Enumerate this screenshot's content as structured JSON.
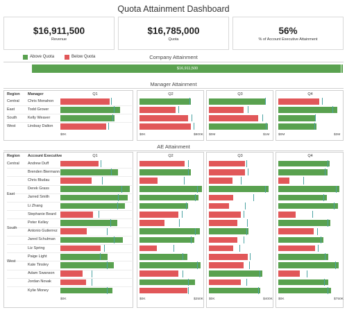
{
  "title": "Quota Attainment Dashboard",
  "kpis": [
    {
      "value": "$16,911,500",
      "label": "Revenue"
    },
    {
      "value": "$16,785,000",
      "label": "Quota"
    },
    {
      "value": "56%",
      "label": "% of Account Executive Attainment"
    }
  ],
  "legend": {
    "above": "Above Quota",
    "below": "Below Quota"
  },
  "colors": {
    "above": "#59a14f",
    "below": "#e15759",
    "target": "#4aa3a3"
  },
  "sections": {
    "company": "Company Attainment",
    "manager": "Manager Attainment",
    "ae": "AE Attainment"
  },
  "col_headers": {
    "region": "Region",
    "manager": "Manager",
    "ae": "Account Executive"
  },
  "quarters": [
    "Q1",
    "Q2",
    "Q3",
    "Q4"
  ],
  "chart_data": [
    {
      "type": "bar",
      "title": "Company Attainment",
      "values": [
        16911500
      ],
      "targets": [
        16785000
      ],
      "label": "$16,911,500",
      "status": [
        "above"
      ]
    },
    {
      "type": "bar",
      "title": "Manager Attainment",
      "regions": [
        "Central",
        "East",
        "South",
        "West"
      ],
      "categories": [
        "Chris Monahon",
        "Todd Grover",
        "Kelly Weaver",
        "Lindsay Dalton"
      ],
      "quarters": [
        {
          "name": "Q1",
          "xlim": [
            0,
            1400000
          ],
          "ticks": [
            "$0K",
            "",
            "",
            ""
          ],
          "values": [
            1000000,
            1200000,
            1090000,
            920000
          ],
          "targets": [
            1020000,
            1080000,
            1050000,
            960000
          ],
          "status": [
            "below",
            "above",
            "above",
            "below"
          ]
        },
        {
          "name": "Q2",
          "xlim": [
            0,
            900000
          ],
          "ticks": [
            "$0K",
            "$800K"
          ],
          "values": [
            740000,
            520000,
            700000,
            740000
          ],
          "targets": [
            720000,
            560000,
            745000,
            780000
          ],
          "status": [
            "above",
            "below",
            "below",
            "below"
          ]
        },
        {
          "name": "Q3",
          "xlim": [
            0,
            1150000
          ],
          "ticks": [
            "$0M",
            "$1M"
          ],
          "values": [
            1040000,
            640000,
            910000,
            1080000
          ],
          "targets": [
            1030000,
            710000,
            990000,
            1050000
          ],
          "status": [
            "above",
            "below",
            "below",
            "above"
          ]
        },
        {
          "name": "Q4",
          "xlim": [
            0,
            3300000
          ],
          "ticks": [
            "$0M",
            "$3M"
          ],
          "values": [
            2100000,
            3050000,
            1950000,
            1990000
          ],
          "targets": [
            2250000,
            2800000,
            1900000,
            1880000
          ],
          "status": [
            "below",
            "above",
            "above",
            "above"
          ]
        }
      ]
    },
    {
      "type": "bar",
      "title": "AE Attainment",
      "region_groups": [
        {
          "region": "Central",
          "start": 0
        },
        {
          "region": "East",
          "start": 4
        },
        {
          "region": "South",
          "start": 8
        },
        {
          "region": "West",
          "start": 12
        }
      ],
      "categories": [
        "Andrew Duff",
        "Brenden Biermann",
        "Chris Bludau",
        "Derek Grass",
        "Jarred Smith",
        "Li Zhang",
        "Stephanie Beard",
        "Peter Kelley",
        "Antonio Gutierrez",
        "Jared Schulman",
        "Liz Spring",
        "Paige Light",
        "Kate Tinsley",
        "Adam Swanson",
        "Jordan Novak",
        "Kylie Money"
      ],
      "quarters": [
        {
          "name": "Q1",
          "xlim": [
            0,
            300000
          ],
          "ticks": [
            "$0K",
            "",
            ""
          ],
          "values": [
            165000,
            250000,
            135000,
            300000,
            290000,
            280000,
            140000,
            245000,
            115000,
            270000,
            175000,
            205000,
            230000,
            95000,
            110000,
            225000
          ],
          "targets": [
            175000,
            220000,
            180000,
            265000,
            250000,
            245000,
            165000,
            215000,
            200000,
            230000,
            190000,
            170000,
            200000,
            135000,
            135000,
            200000
          ],
          "status": [
            "below",
            "above",
            "below",
            "above",
            "above",
            "above",
            "below",
            "above",
            "below",
            "above",
            "below",
            "above",
            "above",
            "below",
            "below",
            "above"
          ]
        },
        {
          "name": "Q2",
          "xlim": [
            0,
            275000
          ],
          "ticks": [
            "$0K",
            "$250K"
          ],
          "values": [
            200000,
            225000,
            80000,
            275000,
            260000,
            215000,
            170000,
            110000,
            265000,
            240000,
            75000,
            210000,
            270000,
            170000,
            245000,
            210000
          ],
          "targets": [
            215000,
            215000,
            195000,
            255000,
            245000,
            205000,
            185000,
            175000,
            245000,
            225000,
            150000,
            190000,
            255000,
            190000,
            215000,
            215000
          ],
          "status": [
            "below",
            "above",
            "below",
            "above",
            "above",
            "above",
            "below",
            "below",
            "above",
            "above",
            "below",
            "above",
            "above",
            "below",
            "above",
            "below"
          ]
        },
        {
          "name": "Q3",
          "xlim": [
            0,
            440000
          ],
          "ticks": [
            "$0K",
            "$400K"
          ],
          "values": [
            255000,
            255000,
            165000,
            420000,
            170000,
            140000,
            225000,
            200000,
            280000,
            200000,
            170000,
            275000,
            245000,
            375000,
            225000,
            360000
          ],
          "targets": [
            265000,
            275000,
            225000,
            395000,
            315000,
            255000,
            245000,
            270000,
            265000,
            245000,
            215000,
            290000,
            285000,
            355000,
            265000,
            345000
          ],
          "status": [
            "below",
            "below",
            "below",
            "above",
            "below",
            "below",
            "below",
            "below",
            "above",
            "below",
            "below",
            "below",
            "below",
            "above",
            "below",
            "above"
          ]
        },
        {
          "name": "Q4",
          "xlim": [
            0,
            900000
          ],
          "ticks": [
            "$0K",
            "$750K"
          ],
          "values": [
            720000,
            690000,
            160000,
            860000,
            680000,
            840000,
            240000,
            730000,
            500000,
            640000,
            520000,
            700000,
            850000,
            300000,
            700000,
            740000
          ],
          "targets": [
            690000,
            660000,
            350000,
            810000,
            640000,
            780000,
            480000,
            690000,
            550000,
            600000,
            560000,
            660000,
            800000,
            400000,
            650000,
            690000
          ],
          "status": [
            "above",
            "above",
            "below",
            "above",
            "above",
            "above",
            "below",
            "above",
            "below",
            "above",
            "below",
            "above",
            "above",
            "below",
            "above",
            "above"
          ]
        }
      ]
    }
  ]
}
